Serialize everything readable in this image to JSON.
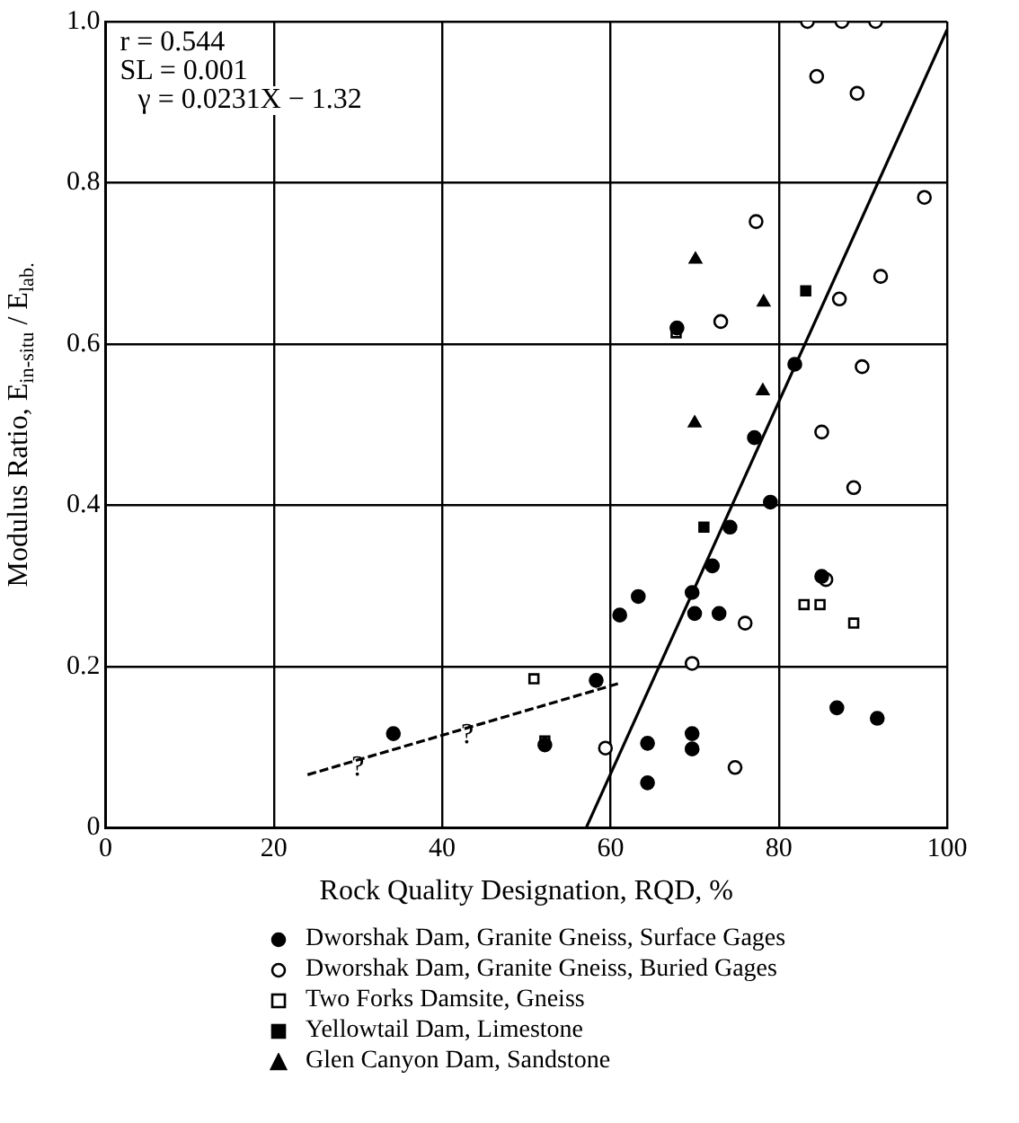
{
  "chart_data": {
    "type": "scatter",
    "xlabel": "Rock Quality Designation, RQD, %",
    "ylabel": "Modulus Ratio, E$_{in-situ}$ / E$_{lab.}$",
    "xlim": [
      0,
      100
    ],
    "xticks": [
      0,
      20,
      40,
      60,
      80,
      100
    ],
    "ylim": [
      0,
      1
    ],
    "yticks": [
      0,
      {
        "value": 0.2,
        "label": "0.2"
      },
      {
        "value": 0.4,
        "label": "0.4"
      },
      {
        "value": 0.6,
        "label": "0.6"
      },
      {
        "value": 0.8,
        "label": "0.8"
      },
      {
        "value": 1,
        "label": "1.0"
      }
    ],
    "grid": true,
    "legend": "bottom",
    "annotations": [
      "r = 0.544",
      "SL = 0.001",
      "γ = 0.0231X − 1.32",
      {
        "text": "?",
        "x": 30,
        "y": 0.075
      },
      {
        "text": "?",
        "x": 43,
        "y": 0.115
      }
    ],
    "series": [
      {
        "name": "Dworshak Dam, Granite Gneiss, Surface Gages",
        "color": "#000000",
        "marker": "circle",
        "x": [
          74.2,
          72.1,
          69.7,
          63.3,
          61.1,
          70,
          72.9,
          85.1,
          58.3,
          34.2,
          52.2,
          64.4,
          69.7,
          69.7,
          64.4,
          86.9,
          91.7,
          81.9,
          77.1,
          79,
          67.9
        ],
        "values": [
          0.373,
          0.325,
          0.292,
          0.287,
          0.264,
          0.266,
          0.266,
          0.312,
          0.183,
          0.117,
          0.103,
          0.105,
          0.117,
          0.098,
          0.056,
          0.149,
          0.136,
          0.575,
          0.484,
          0.404,
          0.62
        ]
      },
      {
        "name": "Dworshak Dam, Granite Gneiss, Buried Gages",
        "color": "#ffffff",
        "marker": "circle",
        "x": [
          83.4,
          87.5,
          91.5,
          84.5,
          89.3,
          97.3,
          77.3,
          92.1,
          87.2,
          73.1,
          89.9,
          85.1,
          88.9,
          76,
          69.7,
          59.4,
          74.8,
          85.6
        ],
        "values": [
          1,
          1,
          1,
          0.932,
          0.911,
          0.782,
          0.752,
          0.684,
          0.656,
          0.628,
          0.572,
          0.491,
          0.422,
          0.254,
          0.204,
          0.099,
          0.075,
          0.308
        ]
      },
      {
        "name": "Two Forks Damsite, Gneiss",
        "color": "#ffffff",
        "marker": "square",
        "x": [
          83,
          84.9,
          88.9,
          50.9,
          52.2,
          67.8
        ],
        "values": [
          0.277,
          0.277,
          0.254,
          0.185,
          0.108,
          0.614
        ]
      },
      {
        "name": "Yellowtail Dam, Limestone",
        "color": "#000000",
        "marker": "square",
        "x": [
          71.1,
          83.2
        ],
        "values": [
          0.373,
          0.666
        ]
      },
      {
        "name": "Glen Canyon Dam, Sandstone",
        "color": "#000000",
        "marker": "triangle",
        "x": [
          70.1,
          78.2,
          78.1,
          70
        ],
        "values": [
          0.705,
          0.652,
          0.542,
          0.502
        ]
      },
      {
        "type": "line",
        "color": "#000000",
        "line_style": "solid",
        "marker": "none",
        "x": [
          57.1,
          100
        ],
        "values": [
          0,
          0.99
        ]
      },
      {
        "type": "line",
        "color": "#000000",
        "line_style": "dashed",
        "marker": "none",
        "x": [
          24,
          60.9
        ],
        "values": [
          0.066,
          0.179
        ]
      }
    ]
  }
}
